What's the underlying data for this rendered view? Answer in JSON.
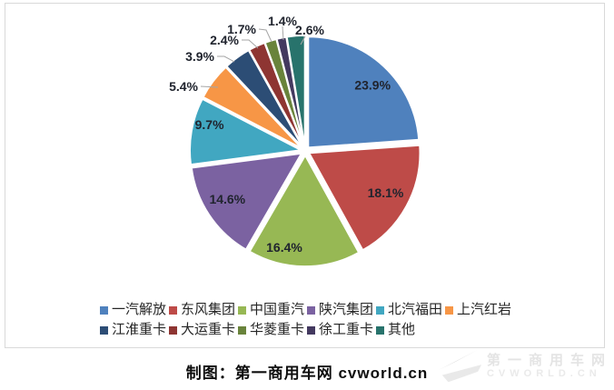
{
  "chart_data": {
    "type": "pie",
    "title": "",
    "categories": [
      "一汽解放",
      "东风集团",
      "中国重汽",
      "陕汽集团",
      "北汽福田",
      "上汽红岩",
      "江淮重卡",
      "大运重卡",
      "华菱重卡",
      "徐工重卡",
      "其他"
    ],
    "values": [
      23.9,
      18.1,
      16.4,
      14.6,
      9.7,
      5.4,
      3.9,
      2.4,
      1.7,
      1.4,
      2.6
    ],
    "labels": [
      "23.9%",
      "18.1%",
      "16.4%",
      "14.6%",
      "9.7%",
      "5.4%",
      "3.9%",
      "2.4%",
      "1.7%",
      "1.4%",
      "2.6%"
    ],
    "colors": [
      "#4F81BD",
      "#BE4B48",
      "#97B854",
      "#7B62A1",
      "#41A7C1",
      "#F79646",
      "#2C4D75",
      "#8E3532",
      "#69833B",
      "#43395F",
      "#28736C"
    ],
    "start_angle_deg": 0,
    "direction": "clockwise",
    "explode": true,
    "legend_position": "bottom",
    "label_color": "#20242e",
    "leader_color": "#a6a6a6",
    "frame_color": "#d9d9d9"
  },
  "legend": {
    "rows": [
      [
        0,
        1,
        2,
        3,
        4,
        5
      ],
      [
        6,
        7,
        8,
        9,
        10
      ]
    ]
  },
  "caption": {
    "text": "制图：第一商用车网 cvworld.cn"
  },
  "watermark": {
    "line1": "第一商用车网",
    "line2": "CVWORLD.CN"
  }
}
